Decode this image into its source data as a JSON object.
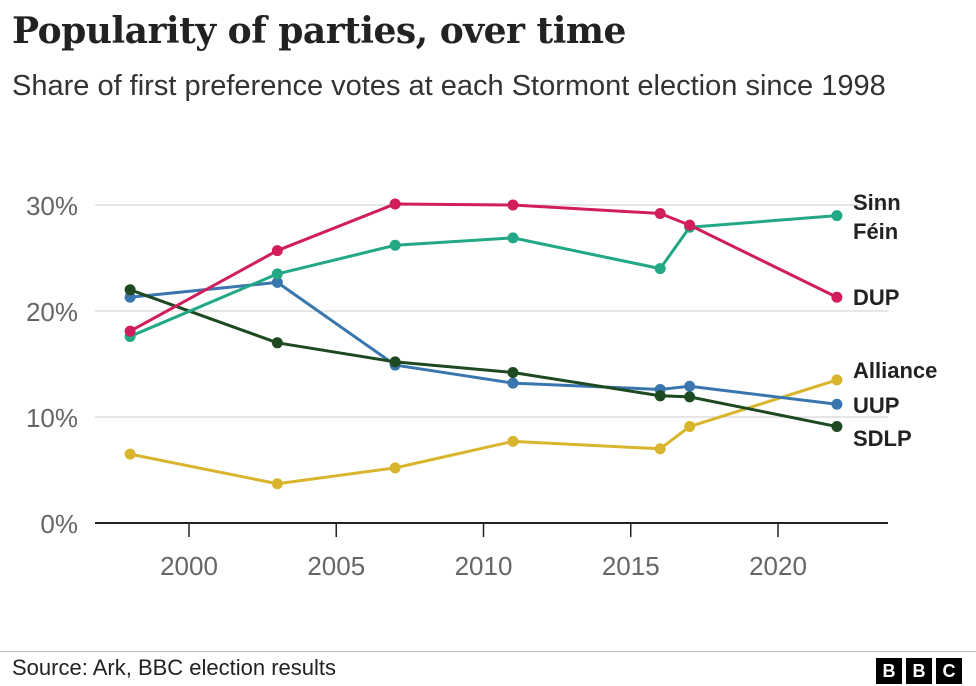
{
  "title": "Popularity of parties, over time",
  "subtitle": "Share of first preference votes at each Stormont election since 1998",
  "source": "Source: Ark, BBC election results",
  "logo_text": "BBC",
  "chart_data": {
    "type": "line",
    "title": "Popularity of parties, over time",
    "subtitle": "Share of first preference votes at each Stormont election since 1998",
    "x": [
      1998,
      2003,
      2007,
      2011,
      2016,
      2017,
      2022
    ],
    "xlim": [
      1995.2,
      2023.8
    ],
    "ylim": [
      0,
      30
    ],
    "x_ticks": [
      2000,
      2005,
      2010,
      2015,
      2020
    ],
    "y_ticks": [
      0,
      10,
      20,
      30
    ],
    "y_tick_labels": [
      "0%",
      "10%",
      "20%",
      "30%"
    ],
    "grid": "horizontal",
    "legend": "direct labels at right",
    "series": [
      {
        "name": "Sinn Féin",
        "label_lines": [
          "Sinn",
          "Féin"
        ],
        "color": "#22a884",
        "values": [
          17.6,
          23.5,
          26.2,
          26.9,
          24.0,
          27.9,
          29.0
        ]
      },
      {
        "name": "DUP",
        "label_lines": [
          "DUP"
        ],
        "color": "#d11d5b",
        "values": [
          18.1,
          25.7,
          30.1,
          30.0,
          29.2,
          28.1,
          21.3
        ]
      },
      {
        "name": "UUP",
        "label_lines": [
          "UUP"
        ],
        "color": "#3a76ae",
        "values": [
          21.3,
          22.7,
          14.9,
          13.2,
          12.6,
          12.9,
          11.2
        ]
      },
      {
        "name": "SDLP",
        "label_lines": [
          "SDLP"
        ],
        "color": "#1e4a22",
        "values": [
          22.0,
          17.0,
          15.2,
          14.2,
          12.0,
          11.9,
          9.1
        ]
      },
      {
        "name": "Alliance",
        "label_lines": [
          "Alliance"
        ],
        "color": "#d8b52c",
        "values": [
          6.5,
          3.7,
          5.2,
          7.7,
          7.0,
          9.1,
          13.5
        ]
      }
    ]
  }
}
